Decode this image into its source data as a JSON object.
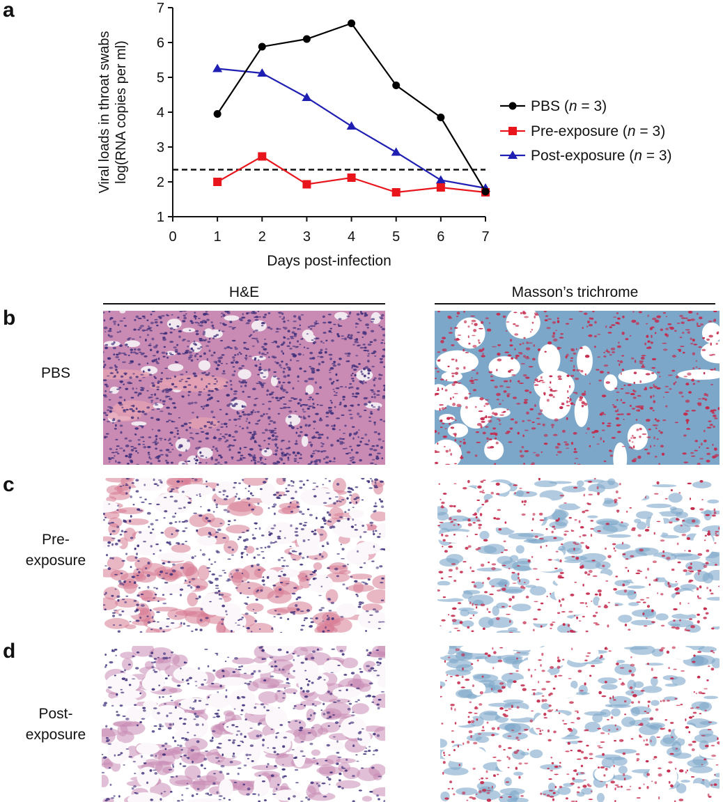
{
  "panels": {
    "a": "a",
    "b": "b",
    "c": "c",
    "d": "d"
  },
  "chart_data": {
    "type": "line",
    "x": [
      1,
      2,
      3,
      4,
      5,
      6,
      7
    ],
    "xlabel": "Days post-infection",
    "ylabel_lines": [
      "Viral loads in throat swabs",
      "log(RNA copies per ml)"
    ],
    "xlim": [
      0,
      7
    ],
    "ylim": [
      1,
      7
    ],
    "xticks": [
      "0",
      "1",
      "2",
      "3",
      "4",
      "5",
      "6",
      "7"
    ],
    "yticks": [
      "1",
      "2",
      "3",
      "4",
      "5",
      "6",
      "7"
    ],
    "threshold": 2.35,
    "grid": false,
    "legend_position": "right",
    "series": [
      {
        "name": "PBS",
        "n_label": "n",
        "n_value": "= 3",
        "marker": "circle",
        "color": "#000000",
        "values": [
          3.95,
          5.88,
          6.1,
          6.55,
          4.77,
          3.85,
          1.72
        ]
      },
      {
        "name": "Pre-exposure",
        "n_label": "n",
        "n_value": "= 3",
        "marker": "square",
        "color": "#e8161c",
        "values": [
          2.0,
          2.73,
          1.93,
          2.12,
          1.7,
          1.84,
          1.7
        ]
      },
      {
        "name": "Post-exposure",
        "n_label": "n",
        "n_value": "= 3",
        "marker": "triangle",
        "color": "#1f1fb4",
        "values": [
          5.25,
          5.12,
          4.42,
          3.6,
          2.85,
          2.05,
          1.82
        ]
      }
    ]
  },
  "histology": {
    "columns": [
      "H&E",
      "Masson’s trichrome"
    ],
    "rows": [
      {
        "label_lines": [
          "PBS"
        ]
      },
      {
        "label_lines": [
          "Pre-",
          "exposure"
        ]
      },
      {
        "label_lines": [
          "Post-",
          "exposure"
        ]
      }
    ]
  },
  "colors": {
    "he_background": "#eddfe9",
    "he_tissue": "#c98bb4",
    "he_nuclei": "#3e2f7a",
    "he_eosin": "#e3a0b3",
    "mt_blue": "#7da7c9",
    "mt_red": "#c42a4c"
  }
}
